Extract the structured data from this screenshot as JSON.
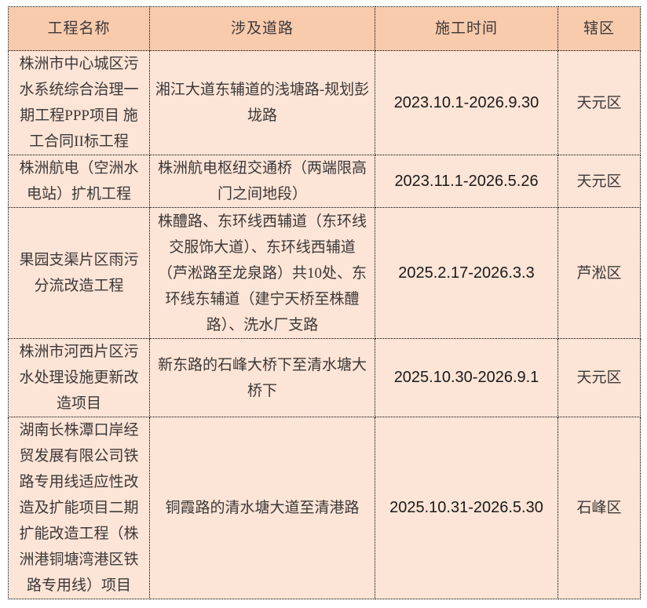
{
  "colors": {
    "header_bg": "#F8CBAD",
    "body_bg": "#FCE4D6",
    "text": "#3B3838",
    "date_text": "#1A1A1A",
    "border": "#000000"
  },
  "table": {
    "headers": [
      "工程名称",
      "涉及道路",
      "施工时间",
      "辖区"
    ],
    "rows": [
      {
        "name": "株洲市中心城区污水系统综合治理一期工程PPP项目 施工合同II标工程",
        "roads": "湘江大道东辅道的浅塘路-规划彭垅路",
        "time": "2023.10.1-2026.9.30",
        "district": "天元区"
      },
      {
        "name": "株洲航电（空洲水电站）扩机工程",
        "roads": "株洲航电枢纽交通桥（两端限高门之间地段）",
        "time": "2023.11.1-2026.5.26",
        "district": "天元区"
      },
      {
        "name": "果园支渠片区雨污分流改造工程",
        "roads": "株醴路、东环线西辅道（东环线交服饰大道）、东环线西辅道（芦淞路至龙泉路）共10处、东环线东辅道（建宁天桥至株醴路）、洗水厂支路",
        "time": "2025.2.17-2026.3.3",
        "district": "芦淞区"
      },
      {
        "name": "株洲市河西片区污水处理设施更新改造项目",
        "roads": "新东路的石峰大桥下至清水塘大桥下",
        "time": "2025.10.30-2026.9.1",
        "district": "天元区"
      },
      {
        "name": "湖南长株潭口岸经贸发展有限公司铁路专用线适应性改造及扩能项目二期扩能改造工程（株洲港铜塘湾港区铁路专用线）项目",
        "roads": "铜霞路的清水塘大道至清港路",
        "time": "2025.10.31-2026.5.30",
        "district": "石峰区"
      }
    ]
  }
}
